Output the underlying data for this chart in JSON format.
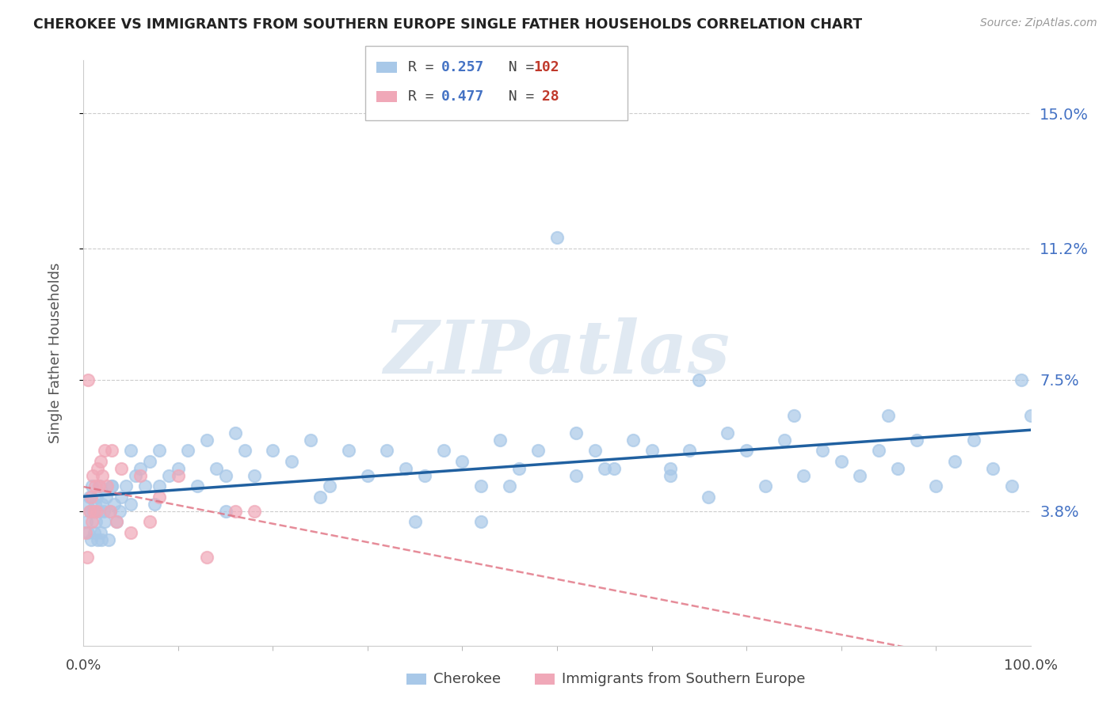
{
  "title": "CHEROKEE VS IMMIGRANTS FROM SOUTHERN EUROPE SINGLE FATHER HOUSEHOLDS CORRELATION CHART",
  "source": "Source: ZipAtlas.com",
  "ylabel": "Single Father Households",
  "cherokee_color": "#a8c8e8",
  "immigrants_color": "#f0a8b8",
  "cherokee_line_color": "#2060a0",
  "immigrants_line_color": "#e07080",
  "ytick_color": "#4472c4",
  "R_cherokee": 0.257,
  "N_cherokee": 102,
  "R_immigrants": 0.477,
  "N_immigrants": 28,
  "watermark_text": "ZIPatlas",
  "background_color": "#ffffff",
  "xlim": [
    0,
    100
  ],
  "ylim": [
    0.0,
    16.5
  ],
  "ytick_vals": [
    3.8,
    7.5,
    11.2,
    15.0
  ],
  "ytick_labels": [
    "3.8%",
    "7.5%",
    "11.2%",
    "15.0%"
  ],
  "cherokee_x": [
    0.3,
    0.4,
    0.5,
    0.6,
    0.7,
    0.8,
    0.9,
    1.0,
    1.1,
    1.2,
    1.3,
    1.4,
    1.5,
    1.6,
    1.7,
    1.8,
    1.9,
    2.0,
    2.1,
    2.2,
    2.4,
    2.6,
    2.8,
    3.0,
    3.2,
    3.5,
    3.8,
    4.0,
    4.5,
    5.0,
    5.5,
    6.0,
    6.5,
    7.0,
    7.5,
    8.0,
    9.0,
    10.0,
    11.0,
    12.0,
    13.0,
    14.0,
    15.0,
    16.0,
    17.0,
    18.0,
    20.0,
    22.0,
    24.0,
    26.0,
    28.0,
    30.0,
    32.0,
    34.0,
    36.0,
    38.0,
    40.0,
    42.0,
    44.0,
    46.0,
    48.0,
    50.0,
    52.0,
    54.0,
    56.0,
    58.0,
    60.0,
    62.0,
    64.0,
    66.0,
    68.0,
    70.0,
    72.0,
    74.0,
    76.0,
    78.0,
    80.0,
    82.0,
    84.0,
    86.0,
    88.0,
    90.0,
    92.0,
    94.0,
    96.0,
    98.0,
    99.0,
    100.0,
    55.0,
    45.0,
    35.0,
    25.0,
    15.0,
    5.0,
    8.0,
    85.0,
    75.0,
    65.0,
    42.0,
    52.0,
    3.0,
    62.0
  ],
  "cherokee_y": [
    3.5,
    4.0,
    3.2,
    4.2,
    3.8,
    3.0,
    4.5,
    3.8,
    3.2,
    4.0,
    3.5,
    4.2,
    3.0,
    3.8,
    4.5,
    3.2,
    3.0,
    4.0,
    3.8,
    3.5,
    4.2,
    3.0,
    3.8,
    4.5,
    4.0,
    3.5,
    3.8,
    4.2,
    4.5,
    4.0,
    4.8,
    5.0,
    4.5,
    5.2,
    4.0,
    5.5,
    4.8,
    5.0,
    5.5,
    4.5,
    5.8,
    5.0,
    4.8,
    6.0,
    5.5,
    4.8,
    5.5,
    5.2,
    5.8,
    4.5,
    5.5,
    4.8,
    5.5,
    5.0,
    4.8,
    5.5,
    5.2,
    4.5,
    5.8,
    5.0,
    5.5,
    11.5,
    4.8,
    5.5,
    5.0,
    5.8,
    5.5,
    4.8,
    5.5,
    4.2,
    6.0,
    5.5,
    4.5,
    5.8,
    4.8,
    5.5,
    5.2,
    4.8,
    5.5,
    5.0,
    5.8,
    4.5,
    5.2,
    5.8,
    5.0,
    4.5,
    7.5,
    6.5,
    5.0,
    4.5,
    3.5,
    4.2,
    3.8,
    5.5,
    4.5,
    6.5,
    6.5,
    7.5,
    3.5,
    6.0,
    4.5,
    5.0
  ],
  "immigrants_x": [
    0.2,
    0.4,
    0.5,
    0.6,
    0.8,
    0.9,
    1.0,
    1.1,
    1.2,
    1.4,
    1.5,
    1.6,
    1.8,
    2.0,
    2.2,
    2.5,
    2.8,
    3.0,
    3.5,
    4.0,
    5.0,
    6.0,
    7.0,
    8.0,
    10.0,
    13.0,
    16.0,
    18.0
  ],
  "immigrants_y": [
    3.2,
    2.5,
    7.5,
    3.8,
    4.2,
    3.5,
    4.8,
    3.8,
    4.5,
    3.8,
    5.0,
    4.5,
    5.2,
    4.8,
    5.5,
    4.5,
    3.8,
    5.5,
    3.5,
    5.0,
    3.2,
    4.8,
    3.5,
    4.2,
    4.8,
    2.5,
    3.8,
    3.8
  ]
}
